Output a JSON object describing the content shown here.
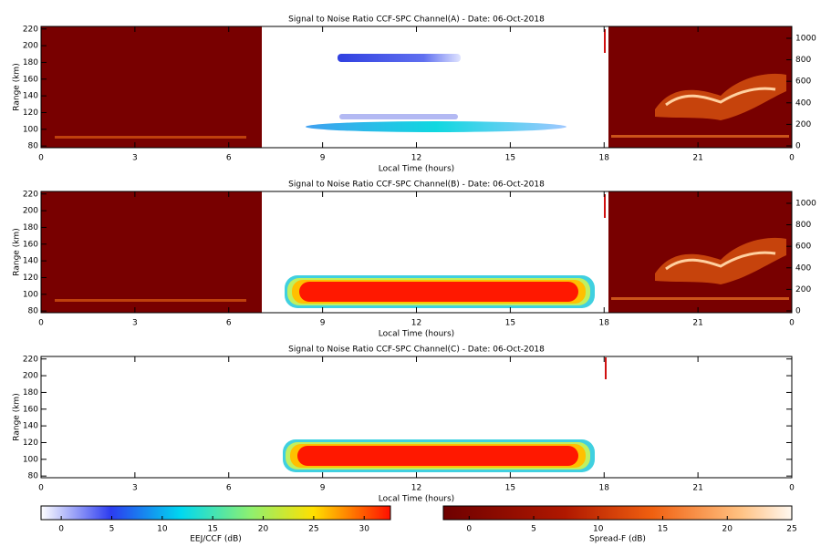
{
  "chart_data": [
    {
      "type": "heatmap",
      "title": "Signal to Noise Ratio CCF-SPC Channel(A) - Date: 06-Oct-2018",
      "x_label": "Local Time (hours)",
      "y_label": "Range (km)",
      "xlim": [
        0,
        24
      ],
      "xticks": [
        0,
        3,
        6,
        9,
        12,
        15,
        18,
        21,
        {
          "value": 24,
          "label": "0"
        }
      ],
      "ylim": [
        78,
        223
      ],
      "yticks": [
        80,
        100,
        120,
        140,
        160,
        180,
        200,
        220
      ],
      "y2lim": [
        -17,
        1110
      ],
      "y2ticks": [
        0,
        200,
        400,
        600,
        800,
        1000
      ]
    },
    {
      "type": "heatmap",
      "title": "Signal to Noise Ratio CCF-SPC Channel(B) - Date: 06-Oct-2018",
      "x_label": "Local Time (hours)",
      "y_label": "Range (km)",
      "xlim": [
        0,
        24
      ],
      "xticks": [
        0,
        3,
        6,
        9,
        12,
        15,
        18,
        21,
        {
          "value": 24,
          "label": "0"
        }
      ],
      "ylim": [
        78,
        223
      ],
      "yticks": [
        80,
        100,
        120,
        140,
        160,
        180,
        200,
        220
      ],
      "y2lim": [
        -17,
        1110
      ],
      "y2ticks": [
        0,
        200,
        400,
        600,
        800,
        1000
      ]
    },
    {
      "type": "heatmap",
      "title": "Signal to Noise Ratio CCF-SPC Channel(C) - Date: 06-Oct-2018",
      "x_label": "Local Time (hours)",
      "y_label": "Range (km)",
      "xlim": [
        0,
        24
      ],
      "xticks": [
        0,
        3,
        6,
        9,
        12,
        15,
        18,
        21,
        {
          "value": 24,
          "label": "0"
        }
      ],
      "ylim": [
        78,
        223
      ],
      "yticks": [
        80,
        100,
        120,
        140,
        160,
        180,
        200,
        220
      ]
    },
    {
      "type": "colorbar",
      "label": "EEJ/CCF (dB)",
      "xlim": [
        -2,
        32.6
      ],
      "xticks": [
        0,
        5,
        10,
        15,
        20,
        25,
        30
      ]
    },
    {
      "type": "colorbar",
      "label": "Spread-F (dB)",
      "xlim": [
        -2,
        25
      ],
      "xticks": [
        0,
        5,
        10,
        15,
        20,
        25
      ]
    }
  ]
}
